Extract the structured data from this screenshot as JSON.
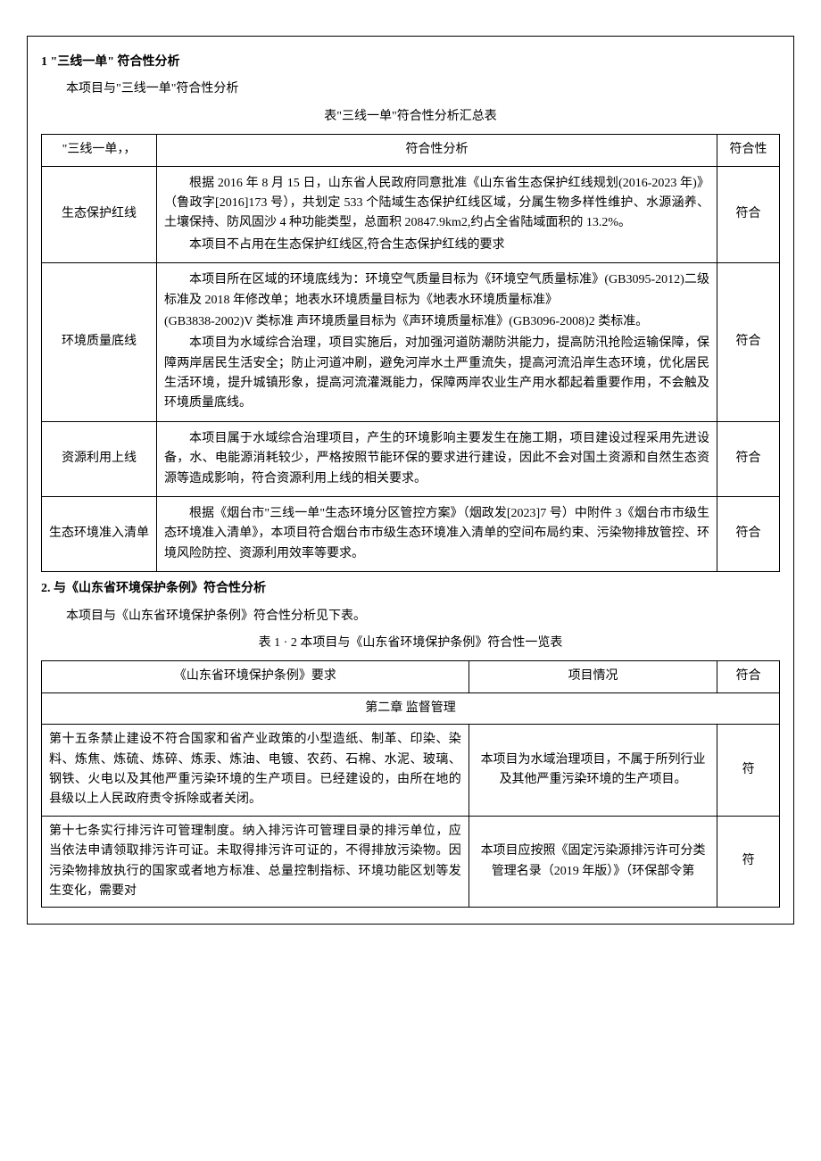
{
  "section1": {
    "title": "1 \"三线一单\" 符合性分析",
    "subtitle": "本项目与\"三线一单\"符合性分析",
    "table_caption": "表\"三线一单\"符合性分析汇总表",
    "headers": {
      "col1": "\"三线一单，，",
      "col2": "符合性分析",
      "col3": "符合性"
    },
    "rows": [
      {
        "label": "生态保护红线",
        "paras": [
          "根据 2016 年 8 月 15 日，山东省人民政府同意批准《山东省生态保护红线规划(2016-2023 年)》（鲁政字[2016]173 号），共划定 533 个陆域生态保护红线区域，分属生物多样性维护、水源涵养、土壤保持、防风固沙 4 种功能类型，总面积 20847.9km2,约占全省陆域面积的 13.2%。",
          "本项目不占用在生态保护红线区,符合生态保护红线的要求"
        ],
        "conform": "符合"
      },
      {
        "label": "环境质量底线",
        "paras": [
          "本项目所在区域的环境底线为：环境空气质量目标为《环境空气质量标准》(GB3095-2012)二级标准及 2018 年修改单；地表水环境质量目标为《地表水环境质量标准》",
          "(GB3838-2002)V 类标准 声环境质量目标为《声环境质量标准》(GB3096-2008)2 类标准。",
          "本项目为水域综合治理，项目实施后，对加强河道防潮防洪能力，提高防汛抢险运输保障，保障两岸居民生活安全；防止河道冲刷，避免河岸水土严重流失，提高河流沿岸生态环境，优化居民生活环境，提升城镇形象，提高河流灌溉能力，保障两岸农业生产用水都起着重要作用，不会触及环境质量底线。"
        ],
        "conform": "符合"
      },
      {
        "label": "资源利用上线",
        "paras": [
          "本项目属于水域综合治理项目，产生的环境影响主要发生在施工期，项目建设过程采用先进设备，水、电能源消耗较少，严格按照节能环保的要求进行建设，因此不会对国土资源和自然生态资源等造成影响，符合资源利用上线的相关要求。"
        ],
        "conform": "符合"
      },
      {
        "label": "生态环境准入清单",
        "paras": [
          "根据《烟台市\"三线一单\"生态环境分区管控方案》（烟政发[2023]7 号）中附件 3《烟台市市级生态环境准入清单》，本项目符合烟台市市级生态环境准入清单的空间布局约束、污染物排放管控、环境风险防控、资源利用效率等要求。"
        ],
        "conform": "符合"
      }
    ]
  },
  "section2": {
    "title": "2. 与《山东省环境保护条例》符合性分析",
    "subtitle": "本项目与《山东省环境保护条例》符合性分析见下表。",
    "table_caption": "表 1 · 2 本项目与《山东省环境保护条例》符合性一览表",
    "headers": {
      "col1": "《山东省环境保护条例》要求",
      "col2": "项目情况",
      "col3": "符合"
    },
    "chapter": "第二章 监督管理",
    "rows": [
      {
        "req": "第十五条禁止建设不符合国家和省产业政策的小型造纸、制革、印染、染料、炼焦、炼硫、炼碎、炼汞、炼油、电镀、农药、石棉、水泥、玻璃、钢铁、火电以及其他严重污染环境的生产项目。已经建设的，由所在地的县级以上人民政府责令拆除或者关闭。",
        "situation": "本项目为水域治理项目，不属于所列行业及其他严重污染环境的生产项目。",
        "conform": "符"
      },
      {
        "req": "第十七条实行排污许可管理制度。纳入排污许可管理目录的排污单位，应当依法申请领取排污许可证。未取得排污许可证的，不得排放污染物。因污染物排放执行的国家或者地方标准、总量控制指标、环境功能区划等发生变化，需要对",
        "situation": "本项目应按照《固定污染源排污许可分类管理名录（2019 年版）》（环保部令第",
        "conform": "符"
      }
    ]
  }
}
